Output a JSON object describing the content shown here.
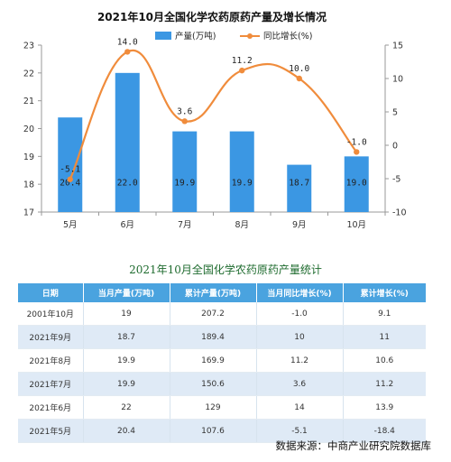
{
  "chart_data": {
    "type": "bar",
    "title": "2021年10月全国化学农药原药产量及增长情况",
    "categories": [
      "5月",
      "6月",
      "7月",
      "8月",
      "9月",
      "10月"
    ],
    "series": [
      {
        "name": "产量(万吨)",
        "kind": "bar",
        "axis": "left",
        "color": "#3b97e3",
        "values": [
          20.4,
          22.0,
          19.9,
          19.9,
          18.7,
          19.0
        ],
        "labels": [
          "20.4",
          "22.0",
          "19.9",
          "19.9",
          "18.7",
          "19.0"
        ]
      },
      {
        "name": "同比增长(%)",
        "kind": "line",
        "axis": "right",
        "color": "#f08c3c",
        "values": [
          -5.1,
          14.0,
          3.6,
          11.2,
          10.0,
          -1.0
        ],
        "labels": [
          "-5.1",
          "14.0",
          "3.6",
          "11.2",
          "10.0",
          "-1.0"
        ]
      }
    ],
    "y_left": {
      "min": 17,
      "max": 23,
      "ticks": [
        "17",
        "18",
        "19",
        "20",
        "21",
        "22",
        "23"
      ]
    },
    "y_right": {
      "min": -10,
      "max": 15,
      "ticks": [
        "-10",
        "-5",
        "0",
        "5",
        "10",
        "15"
      ]
    },
    "legend_position": "top",
    "grid": false
  },
  "table": {
    "title": "2021年10月全国化学农药原药产量统计",
    "headers": [
      "日期",
      "当月产量(万吨)",
      "累计产量(万吨)",
      "当月同比增长(%)",
      "累计增长(%)"
    ],
    "rows": [
      [
        "2001年10月",
        "19",
        "207.2",
        "-1.0",
        "9.1"
      ],
      [
        "2021年9月",
        "18.7",
        "189.4",
        "10",
        "11"
      ],
      [
        "2021年8月",
        "19.9",
        "169.9",
        "11.2",
        "10.6"
      ],
      [
        "2021年7月",
        "19.9",
        "150.6",
        "3.6",
        "11.2"
      ],
      [
        "2021年6月",
        "22",
        "129",
        "14",
        "13.9"
      ],
      [
        "2021年5月",
        "20.4",
        "107.6",
        "-5.1",
        "-18.4"
      ]
    ]
  },
  "source": "数据来源：中商产业研究院数据库"
}
